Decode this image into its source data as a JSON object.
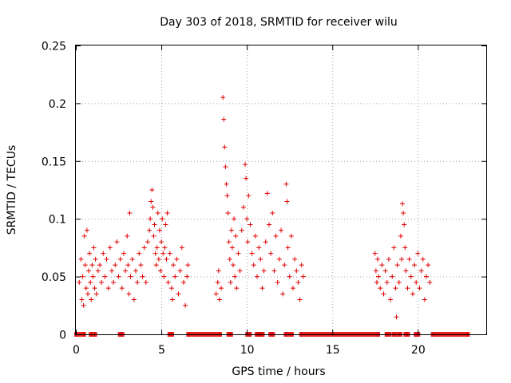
{
  "colors": {
    "series": "#e00000",
    "grid": "#a0a0a0",
    "frame": "#000000"
  },
  "chart_data": {
    "type": "scatter",
    "title": "Day 303 of 2018, SRMTID for receiver wilu",
    "xlabel": "GPS time / hours",
    "ylabel": "SRMTID / TECUs",
    "xlim": [
      0,
      24
    ],
    "ylim": [
      0,
      0.25
    ],
    "grid": true,
    "x_ticks": [
      0,
      5,
      10,
      15,
      20
    ],
    "x_tick_labels": [
      "0",
      "5",
      "10",
      "15",
      "20"
    ],
    "y_ticks": [
      0,
      0.05,
      0.1,
      0.15,
      0.2,
      0.25
    ],
    "y_tick_labels": [
      "0",
      "0.05",
      "0.1",
      "0.15",
      "0.2",
      "0.25"
    ],
    "marker": "+",
    "series": [
      {
        "name": "SRMTID",
        "points": [
          [
            0.2,
            0.045
          ],
          [
            0.3,
            0.065
          ],
          [
            0.35,
            0.03
          ],
          [
            0.4,
            0.05
          ],
          [
            0.45,
            0.025
          ],
          [
            0.5,
            0.085
          ],
          [
            0.55,
            0.06
          ],
          [
            0.6,
            0.04
          ],
          [
            0.65,
            0.09
          ],
          [
            0.7,
            0.035
          ],
          [
            0.75,
            0.055
          ],
          [
            0.8,
            0.07
          ],
          [
            0.85,
            0.045
          ],
          [
            0.9,
            0.03
          ],
          [
            0.95,
            0.06
          ],
          [
            1.0,
            0.05
          ],
          [
            1.05,
            0.075
          ],
          [
            1.1,
            0.04
          ],
          [
            1.15,
            0.065
          ],
          [
            1.2,
            0.035
          ],
          [
            1.3,
            0.055
          ],
          [
            1.4,
            0.06
          ],
          [
            1.5,
            0.045
          ],
          [
            1.6,
            0.07
          ],
          [
            1.7,
            0.05
          ],
          [
            1.8,
            0.065
          ],
          [
            1.9,
            0.04
          ],
          [
            2.0,
            0.075
          ],
          [
            2.1,
            0.055
          ],
          [
            2.2,
            0.045
          ],
          [
            2.3,
            0.06
          ],
          [
            2.4,
            0.08
          ],
          [
            2.5,
            0.05
          ],
          [
            2.6,
            0.065
          ],
          [
            2.7,
            0.04
          ],
          [
            2.8,
            0.07
          ],
          [
            2.9,
            0.055
          ],
          [
            3.0,
            0.085
          ],
          [
            3.05,
            0.06
          ],
          [
            3.1,
            0.035
          ],
          [
            3.15,
            0.105
          ],
          [
            3.2,
            0.05
          ],
          [
            3.3,
            0.065
          ],
          [
            3.4,
            0.03
          ],
          [
            3.5,
            0.055
          ],
          [
            3.6,
            0.045
          ],
          [
            3.7,
            0.07
          ],
          [
            3.8,
            0.06
          ],
          [
            3.9,
            0.05
          ],
          [
            4.0,
            0.075
          ],
          [
            4.1,
            0.045
          ],
          [
            4.2,
            0.08
          ],
          [
            4.3,
            0.09
          ],
          [
            4.35,
            0.1
          ],
          [
            4.4,
            0.115
          ],
          [
            4.45,
            0.125
          ],
          [
            4.5,
            0.11
          ],
          [
            4.55,
            0.085
          ],
          [
            4.6,
            0.095
          ],
          [
            4.65,
            0.07
          ],
          [
            4.7,
            0.06
          ],
          [
            4.75,
            0.075
          ],
          [
            4.8,
            0.105
          ],
          [
            4.85,
            0.065
          ],
          [
            4.9,
            0.09
          ],
          [
            4.95,
            0.055
          ],
          [
            5.0,
            0.08
          ],
          [
            5.05,
            0.1
          ],
          [
            5.1,
            0.07
          ],
          [
            5.15,
            0.05
          ],
          [
            5.2,
            0.075
          ],
          [
            5.25,
            0.095
          ],
          [
            5.3,
            0.065
          ],
          [
            5.35,
            0.105
          ],
          [
            5.4,
            0.045
          ],
          [
            5.5,
            0.07
          ],
          [
            5.6,
            0.04
          ],
          [
            5.65,
            0.03
          ],
          [
            5.7,
            0.06
          ],
          [
            5.8,
            0.05
          ],
          [
            5.9,
            0.065
          ],
          [
            6.0,
            0.035
          ],
          [
            6.1,
            0.055
          ],
          [
            6.2,
            0.075
          ],
          [
            6.3,
            0.045
          ],
          [
            6.4,
            0.025
          ],
          [
            6.5,
            0.05
          ],
          [
            6.55,
            0.06
          ],
          [
            8.2,
            0.035
          ],
          [
            8.3,
            0.045
          ],
          [
            8.35,
            0.055
          ],
          [
            8.4,
            0.03
          ],
          [
            8.5,
            0.04
          ],
          [
            8.6,
            0.205
          ],
          [
            8.65,
            0.186
          ],
          [
            8.7,
            0.162
          ],
          [
            8.75,
            0.145
          ],
          [
            8.8,
            0.13
          ],
          [
            8.85,
            0.12
          ],
          [
            8.9,
            0.105
          ],
          [
            8.95,
            0.08
          ],
          [
            9.0,
            0.065
          ],
          [
            9.05,
            0.045
          ],
          [
            9.1,
            0.09
          ],
          [
            9.15,
            0.075
          ],
          [
            9.2,
            0.06
          ],
          [
            9.25,
            0.1
          ],
          [
            9.3,
            0.05
          ],
          [
            9.35,
            0.085
          ],
          [
            9.4,
            0.04
          ],
          [
            9.5,
            0.07
          ],
          [
            9.6,
            0.055
          ],
          [
            9.7,
            0.09
          ],
          [
            9.8,
            0.11
          ],
          [
            9.9,
            0.147
          ],
          [
            9.95,
            0.135
          ],
          [
            10.0,
            0.1
          ],
          [
            10.05,
            0.08
          ],
          [
            10.1,
            0.12
          ],
          [
            10.2,
            0.095
          ],
          [
            10.3,
            0.07
          ],
          [
            10.4,
            0.06
          ],
          [
            10.5,
            0.085
          ],
          [
            10.6,
            0.05
          ],
          [
            10.7,
            0.075
          ],
          [
            10.8,
            0.065
          ],
          [
            10.9,
            0.04
          ],
          [
            11.0,
            0.055
          ],
          [
            11.1,
            0.08
          ],
          [
            11.2,
            0.122
          ],
          [
            11.3,
            0.095
          ],
          [
            11.4,
            0.07
          ],
          [
            11.5,
            0.105
          ],
          [
            11.6,
            0.055
          ],
          [
            11.7,
            0.085
          ],
          [
            11.8,
            0.045
          ],
          [
            11.9,
            0.065
          ],
          [
            12.0,
            0.09
          ],
          [
            12.1,
            0.035
          ],
          [
            12.2,
            0.06
          ],
          [
            12.3,
            0.13
          ],
          [
            12.35,
            0.115
          ],
          [
            12.4,
            0.075
          ],
          [
            12.5,
            0.05
          ],
          [
            12.6,
            0.085
          ],
          [
            12.7,
            0.04
          ],
          [
            12.8,
            0.065
          ],
          [
            12.9,
            0.055
          ],
          [
            13.0,
            0.045
          ],
          [
            13.1,
            0.03
          ],
          [
            13.2,
            0.06
          ],
          [
            13.3,
            0.05
          ],
          [
            17.5,
            0.07
          ],
          [
            17.55,
            0.055
          ],
          [
            17.6,
            0.045
          ],
          [
            17.65,
            0.065
          ],
          [
            17.7,
            0.05
          ],
          [
            17.8,
            0.04
          ],
          [
            17.9,
            0.06
          ],
          [
            18.0,
            0.035
          ],
          [
            18.1,
            0.055
          ],
          [
            18.2,
            0.045
          ],
          [
            18.3,
            0.065
          ],
          [
            18.4,
            0.03
          ],
          [
            18.5,
            0.05
          ],
          [
            18.6,
            0.075
          ],
          [
            18.7,
            0.04
          ],
          [
            18.75,
            0.015
          ],
          [
            18.8,
            0.06
          ],
          [
            18.9,
            0.045
          ],
          [
            19.0,
            0.085
          ],
          [
            19.05,
            0.065
          ],
          [
            19.1,
            0.113
          ],
          [
            19.15,
            0.105
          ],
          [
            19.2,
            0.095
          ],
          [
            19.25,
            0.075
          ],
          [
            19.3,
            0.055
          ],
          [
            19.4,
            0.04
          ],
          [
            19.5,
            0.065
          ],
          [
            19.6,
            0.05
          ],
          [
            19.7,
            0.035
          ],
          [
            19.8,
            0.06
          ],
          [
            19.9,
            0.045
          ],
          [
            20.0,
            0.07
          ],
          [
            20.1,
            0.04
          ],
          [
            20.2,
            0.055
          ],
          [
            20.3,
            0.065
          ],
          [
            20.4,
            0.03
          ],
          [
            20.5,
            0.05
          ],
          [
            20.6,
            0.06
          ],
          [
            20.7,
            0.045
          ]
        ],
        "zero_segments": [
          [
            0.05,
            0.45
          ],
          [
            0.9,
            1.1
          ],
          [
            2.6,
            2.7
          ],
          [
            5.5,
            5.6
          ],
          [
            6.6,
            8.4
          ],
          [
            8.95,
            9.05
          ],
          [
            10.05,
            10.15
          ],
          [
            10.6,
            10.7
          ],
          [
            10.8,
            10.9
          ],
          [
            11.4,
            11.5
          ],
          [
            12.3,
            12.6
          ],
          [
            13.2,
            17.65
          ],
          [
            18.2,
            18.3
          ],
          [
            18.6,
            18.95
          ],
          [
            19.3,
            19.4
          ],
          [
            19.9,
            20.0
          ],
          [
            20.9,
            22.9
          ]
        ]
      }
    ]
  }
}
